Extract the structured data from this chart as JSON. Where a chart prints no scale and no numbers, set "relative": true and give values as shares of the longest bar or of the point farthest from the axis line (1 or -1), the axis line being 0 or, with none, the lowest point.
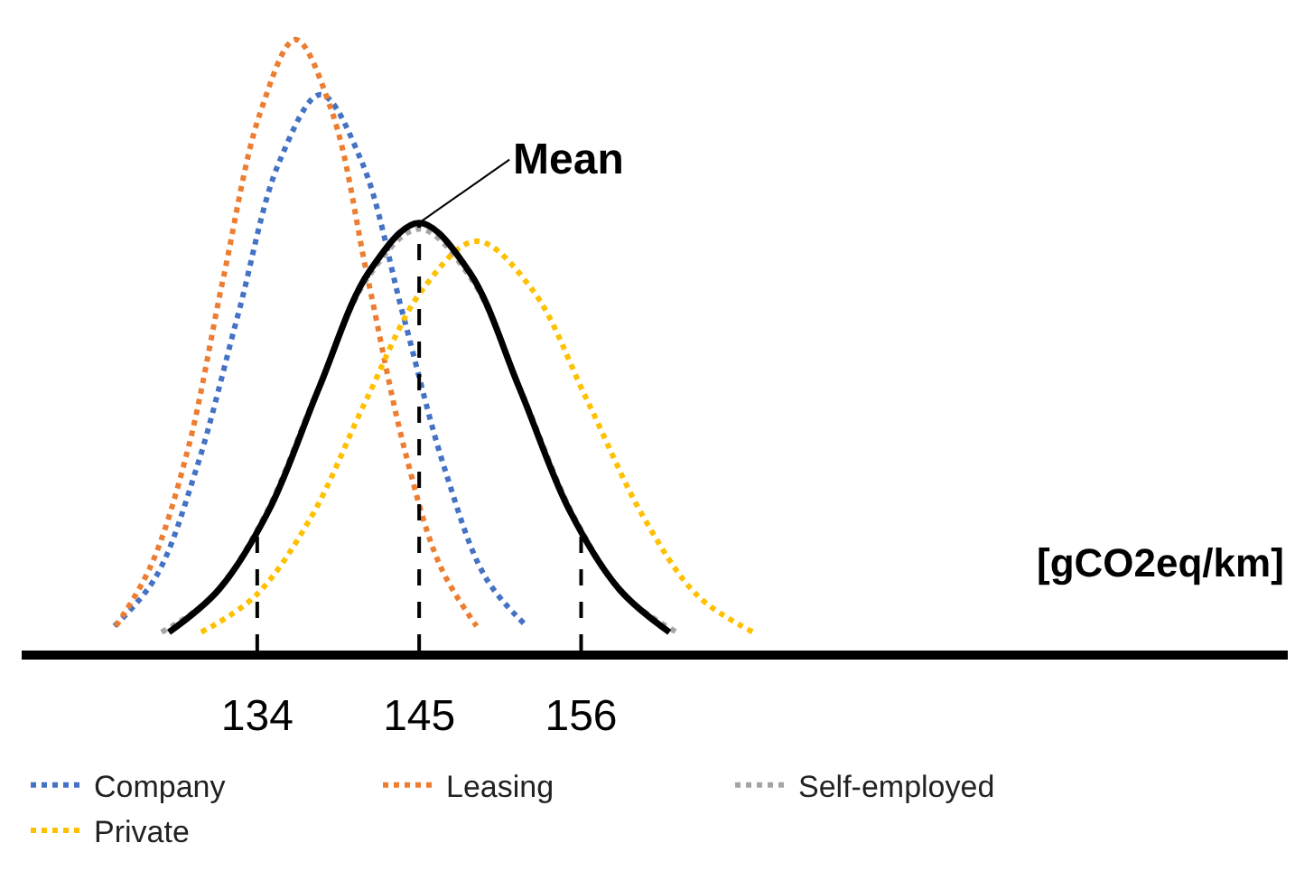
{
  "chart_data": {
    "type": "line",
    "relative": true,
    "xlim": [
      118,
      204
    ],
    "xticks": [
      134,
      145,
      156
    ],
    "marker": "none",
    "legend": "bottom",
    "tick_labels": "x",
    "series": [
      {
        "name": "Company",
        "color": "#4472c4",
        "line_style": "dotted",
        "x": [
          124.3,
          127.1,
          129.9,
          132.7,
          135.5,
          138.3,
          141.1,
          143.9,
          146.7,
          149.5,
          152.3
        ],
        "values": [
          0.04,
          0.12,
          0.3,
          0.55,
          0.8,
          0.91,
          0.8,
          0.55,
          0.3,
          0.12,
          0.04
        ]
      },
      {
        "name": "Leasing",
        "color": "#ed7d31",
        "line_style": "dotted",
        "x": [
          124.4,
          126.8,
          129.3,
          131.7,
          134.2,
          136.6,
          139.1,
          141.5,
          144.0,
          146.4,
          148.9
        ],
        "values": [
          0.04,
          0.14,
          0.33,
          0.61,
          0.88,
          1,
          0.88,
          0.61,
          0.33,
          0.14,
          0.04
        ]
      },
      {
        "name": "Self-employed",
        "color": "#a5a5a5",
        "line_style": "dotted",
        "x": [
          127.5,
          131,
          134.5,
          138,
          141.5,
          145,
          148.5,
          152,
          155.5,
          159,
          162.5
        ],
        "values": [
          0.03,
          0.09,
          0.22,
          0.42,
          0.61,
          0.69,
          0.61,
          0.42,
          0.22,
          0.09,
          0.03
        ]
      },
      {
        "name": "Private",
        "color": "#ffc000",
        "line_style": "dotted",
        "x": [
          130.2,
          133.9,
          137.7,
          141.4,
          145.2,
          148.9,
          152.7,
          156.4,
          160.2,
          163.9,
          167.7
        ],
        "values": [
          0.03,
          0.09,
          0.22,
          0.41,
          0.59,
          0.67,
          0.59,
          0.41,
          0.22,
          0.09,
          0.03
        ]
      },
      {
        "color": "#000000",
        "line_style": "solid",
        "x": [
          128,
          131.4,
          134.8,
          138.2,
          141.6,
          145,
          148.4,
          151.8,
          155.2,
          158.6,
          162
        ],
        "values": [
          0.03,
          0.1,
          0.23,
          0.43,
          0.62,
          0.7,
          0.62,
          0.43,
          0.23,
          0.1,
          0.03
        ]
      }
    ],
    "ref_lines": [
      {
        "axis": "x",
        "value": 134,
        "color": "#000000",
        "line_style": "dashed"
      },
      {
        "axis": "x",
        "value": 145,
        "color": "#000000",
        "line_style": "dashed"
      },
      {
        "axis": "x",
        "value": 156,
        "color": "#000000",
        "line_style": "dashed"
      }
    ],
    "annotations": [
      {
        "text": "Mean",
        "x": 145,
        "y": 0.7
      },
      "[gCO2eq/km]"
    ]
  }
}
